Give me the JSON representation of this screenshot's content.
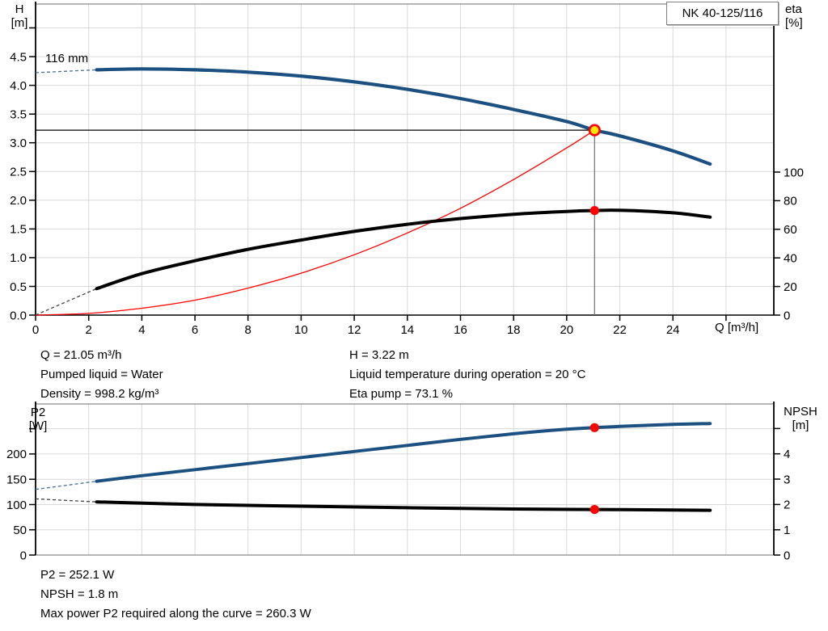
{
  "colors": {
    "curve_blue": "#1b5080",
    "curve_black": "#000000",
    "curve_red": "#ff0000",
    "dash_blue": "#4a6f96",
    "dash_black": "#444444",
    "grid": "#d9d9d9",
    "axis": "#000000",
    "border_gray": "#8a8a8a",
    "guide_gray": "#707070",
    "guide_black": "#000000",
    "duty_fill": "#ffe600",
    "duty_ring": "#ff0000",
    "marker_red": "#ff0000"
  },
  "chart_data": [
    {
      "type": "line",
      "title": "NK 40-125/116",
      "annotation": "116 mm",
      "xlabel": "Q [m³/h]",
      "ylabel_left": [
        "H",
        "[m]"
      ],
      "ylabel_right": [
        "eta",
        "[%]"
      ],
      "xlim": [
        0,
        27.8
      ],
      "ylim_left": [
        0,
        5.415
      ],
      "ylim_right": [
        0,
        217.5
      ],
      "grid_x": [
        2,
        4,
        6,
        8,
        10,
        12,
        14,
        16,
        18,
        20,
        22,
        24,
        26
      ],
      "grid_y": [
        0.5,
        1.0,
        1.5,
        2.0,
        2.5,
        3.0,
        3.5,
        4.0,
        4.5,
        5.0
      ],
      "x_ticks": [
        {
          "v": 0,
          "l": "0"
        },
        {
          "v": 2,
          "l": "2"
        },
        {
          "v": 4,
          "l": "4"
        },
        {
          "v": 6,
          "l": "6"
        },
        {
          "v": 8,
          "l": "8"
        },
        {
          "v": 10,
          "l": "10"
        },
        {
          "v": 12,
          "l": "12"
        },
        {
          "v": 14,
          "l": "14"
        },
        {
          "v": 16,
          "l": "16"
        },
        {
          "v": 18,
          "l": "18"
        },
        {
          "v": 20,
          "l": "20"
        },
        {
          "v": 22,
          "l": "22"
        },
        {
          "v": 24,
          "l": "24"
        },
        {
          "v": 26,
          "l": ""
        }
      ],
      "left_ticks": [
        {
          "v": 0,
          "l": "0.0"
        },
        {
          "v": 0.5,
          "l": "0.5"
        },
        {
          "v": 1.0,
          "l": "1.0"
        },
        {
          "v": 1.5,
          "l": "1.5"
        },
        {
          "v": 2.0,
          "l": "2.0"
        },
        {
          "v": 2.5,
          "l": "2.5"
        },
        {
          "v": 3.0,
          "l": "3.0"
        },
        {
          "v": 3.5,
          "l": "3.5"
        },
        {
          "v": 4.0,
          "l": "4.0"
        },
        {
          "v": 4.5,
          "l": "4.5"
        },
        {
          "v": 5.0,
          "l": ""
        }
      ],
      "right_ticks": [
        {
          "v": 0,
          "l": "0"
        },
        {
          "v": 20,
          "l": "20"
        },
        {
          "v": 40,
          "l": "40"
        },
        {
          "v": 60,
          "l": "60"
        },
        {
          "v": 80,
          "l": "80"
        },
        {
          "v": 100,
          "l": "100"
        }
      ],
      "series": [
        {
          "name": "system-curve",
          "axis": "left",
          "color": "#ff0000",
          "width": 1.3,
          "points": [
            [
              0,
              0
            ],
            [
              2,
              0.03
            ],
            [
              4,
              0.12
            ],
            [
              6,
              0.26
            ],
            [
              8,
              0.47
            ],
            [
              10,
              0.73
            ],
            [
              12,
              1.05
            ],
            [
              14,
              1.43
            ],
            [
              16,
              1.86
            ],
            [
              18,
              2.36
            ],
            [
              20,
              2.91
            ],
            [
              21.05,
              3.22
            ]
          ]
        },
        {
          "name": "efficiency-curve",
          "axis": "right",
          "color": "#000000",
          "width": 4,
          "dash_lead": [
            [
              0,
              0
            ],
            [
              2.3,
              18.5
            ]
          ],
          "dash_color": "#444444",
          "points": [
            [
              2.3,
              18.5
            ],
            [
              4,
              29
            ],
            [
              6,
              38
            ],
            [
              8,
              46
            ],
            [
              10,
              52.5
            ],
            [
              12,
              58.5
            ],
            [
              14,
              63.5
            ],
            [
              16,
              67.5
            ],
            [
              18,
              70.5
            ],
            [
              20,
              72.5
            ],
            [
              21.05,
              73.1
            ],
            [
              22,
              73.3
            ],
            [
              24,
              71.5
            ],
            [
              25.4,
              68.5
            ]
          ]
        },
        {
          "name": "head-curve",
          "axis": "left",
          "color": "#1b5080",
          "width": 4.2,
          "dash_lead": [
            [
              0,
              4.22
            ],
            [
              2.3,
              4.27
            ]
          ],
          "dash_color": "#4a6f96",
          "points": [
            [
              2.3,
              4.27
            ],
            [
              4,
              4.285
            ],
            [
              6,
              4.27
            ],
            [
              8,
              4.23
            ],
            [
              10,
              4.16
            ],
            [
              12,
              4.06
            ],
            [
              14,
              3.93
            ],
            [
              16,
              3.77
            ],
            [
              18,
              3.58
            ],
            [
              20,
              3.37
            ],
            [
              21.05,
              3.22
            ],
            [
              22,
              3.12
            ],
            [
              24,
              2.86
            ],
            [
              25.4,
              2.63
            ]
          ]
        }
      ],
      "duty_lines": {
        "q": 21.05,
        "h": 3.22
      },
      "markers": [
        {
          "name": "duty-point",
          "q": 21.05,
          "v": 3.22,
          "axis": "left",
          "style": "duty"
        },
        {
          "name": "efficiency-point",
          "q": 21.05,
          "v": 73.1,
          "axis": "right",
          "style": "dot"
        }
      ]
    },
    {
      "type": "line",
      "xlabel": "",
      "ylabel_left": [
        "P2",
        "[W]"
      ],
      "ylabel_right": [
        "NPSH",
        "[m]"
      ],
      "xlim": [
        0,
        27.8
      ],
      "ylim_left": [
        0,
        299
      ],
      "ylim_right": [
        0,
        5.97
      ],
      "grid_x": [
        2,
        4,
        6,
        8,
        10,
        12,
        14,
        16,
        18,
        20,
        22,
        24,
        26
      ],
      "grid_y": [
        50,
        100,
        150,
        200,
        250
      ],
      "x_ticks": [],
      "left_ticks": [
        {
          "v": 0,
          "l": "0"
        },
        {
          "v": 50,
          "l": "50"
        },
        {
          "v": 100,
          "l": "100"
        },
        {
          "v": 150,
          "l": "150"
        },
        {
          "v": 200,
          "l": "200"
        },
        {
          "v": 250,
          "l": ""
        }
      ],
      "right_ticks": [
        {
          "v": 0,
          "l": "0"
        },
        {
          "v": 1,
          "l": "1"
        },
        {
          "v": 2,
          "l": "2"
        },
        {
          "v": 3,
          "l": "3"
        },
        {
          "v": 4,
          "l": "4"
        },
        {
          "v": 5,
          "l": ""
        }
      ],
      "series": [
        {
          "name": "power-curve",
          "axis": "left",
          "color": "#1b5080",
          "width": 4,
          "dash_lead": [
            [
              0,
              130
            ],
            [
              2.3,
              146
            ]
          ],
          "dash_color": "#4a6f96",
          "points": [
            [
              2.3,
              146
            ],
            [
              4,
              157
            ],
            [
              6,
              169
            ],
            [
              8,
              181
            ],
            [
              10,
              193
            ],
            [
              12,
              205
            ],
            [
              14,
              217
            ],
            [
              16,
              229
            ],
            [
              18,
              240
            ],
            [
              20,
              249
            ],
            [
              21.05,
              252.1
            ],
            [
              22,
              254.5
            ],
            [
              24,
              258.5
            ],
            [
              25.4,
              260.3
            ]
          ]
        },
        {
          "name": "npsh-curve",
          "axis": "right",
          "color": "#000000",
          "width": 4,
          "dash_lead": [
            [
              0,
              2.22
            ],
            [
              2.3,
              2.1
            ]
          ],
          "dash_color": "#444444",
          "points": [
            [
              2.3,
              2.1
            ],
            [
              6,
              2.0
            ],
            [
              10,
              1.93
            ],
            [
              14,
              1.87
            ],
            [
              18,
              1.82
            ],
            [
              21.05,
              1.8
            ],
            [
              24,
              1.78
            ],
            [
              25.4,
              1.77
            ]
          ]
        }
      ],
      "markers": [
        {
          "name": "power-point",
          "q": 21.05,
          "v": 252.1,
          "axis": "left",
          "style": "dot"
        },
        {
          "name": "npsh-point",
          "q": 21.05,
          "v": 1.8,
          "axis": "right",
          "style": "dot"
        }
      ]
    }
  ],
  "readouts": {
    "top_left": [
      "Q = 21.05 m³/h",
      "Pumped liquid = Water",
      "Density = 998.2 kg/m³"
    ],
    "top_right": [
      "H = 3.22 m",
      "Liquid temperature during operation = 20 °C",
      "Eta pump = 73.1 %"
    ],
    "bottom": [
      "P2 = 252.1 W",
      "NPSH = 1.8 m",
      "Max power P2 required along the curve = 260.3 W"
    ]
  }
}
